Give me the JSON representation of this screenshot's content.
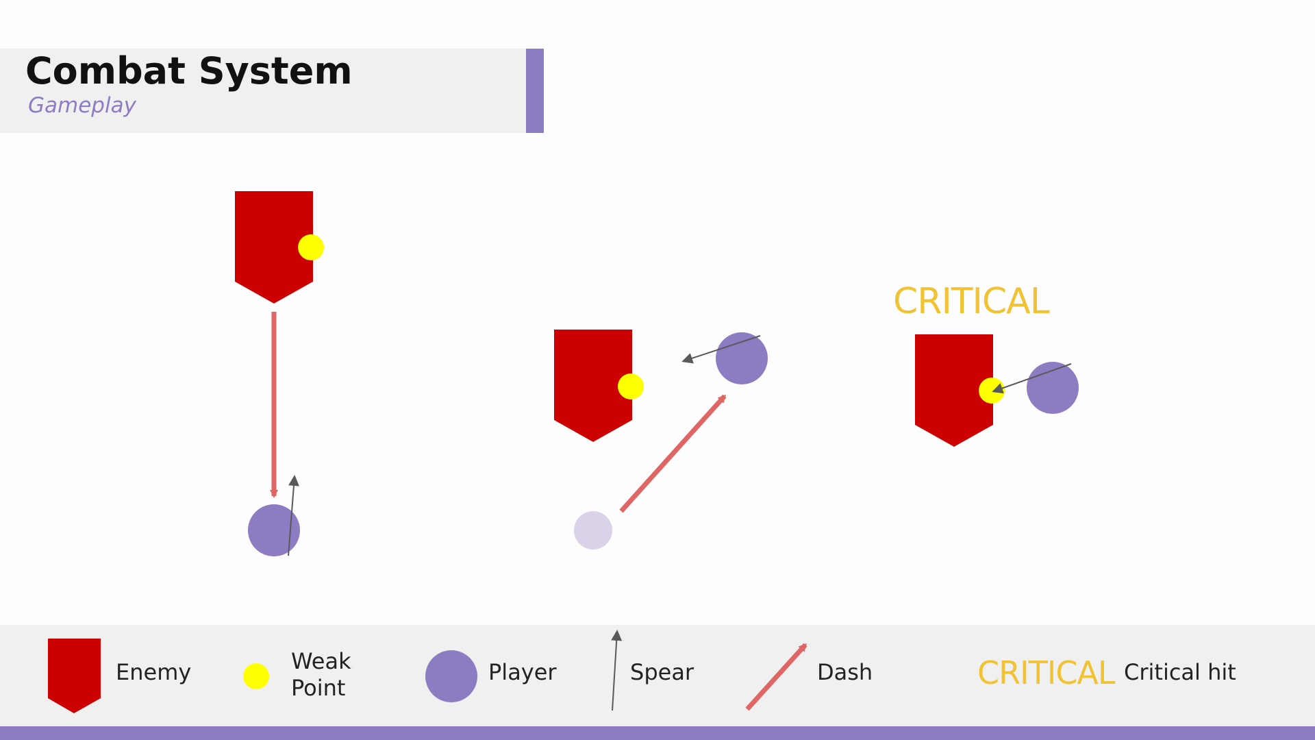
{
  "header": {
    "title": "Combat System",
    "subtitle": "Gameplay"
  },
  "scenes": {
    "critical_label": "CRITICAL"
  },
  "legend": {
    "enemy": "Enemy",
    "weak_point_line1": "Weak",
    "weak_point_line2": "Point",
    "player": "Player",
    "spear": "Spear",
    "dash": "Dash",
    "critical_sample": "CRITICAL",
    "critical_hit": "Critical hit"
  },
  "colors": {
    "enemy": "#cc0000",
    "weak_point": "#ffff00",
    "player": "#8e7cc3",
    "player_ghost": "#d9d2e9",
    "dash": "#e06666",
    "spear": "#595959",
    "critical": "#f1c232",
    "accent": "#8e7cc3"
  }
}
